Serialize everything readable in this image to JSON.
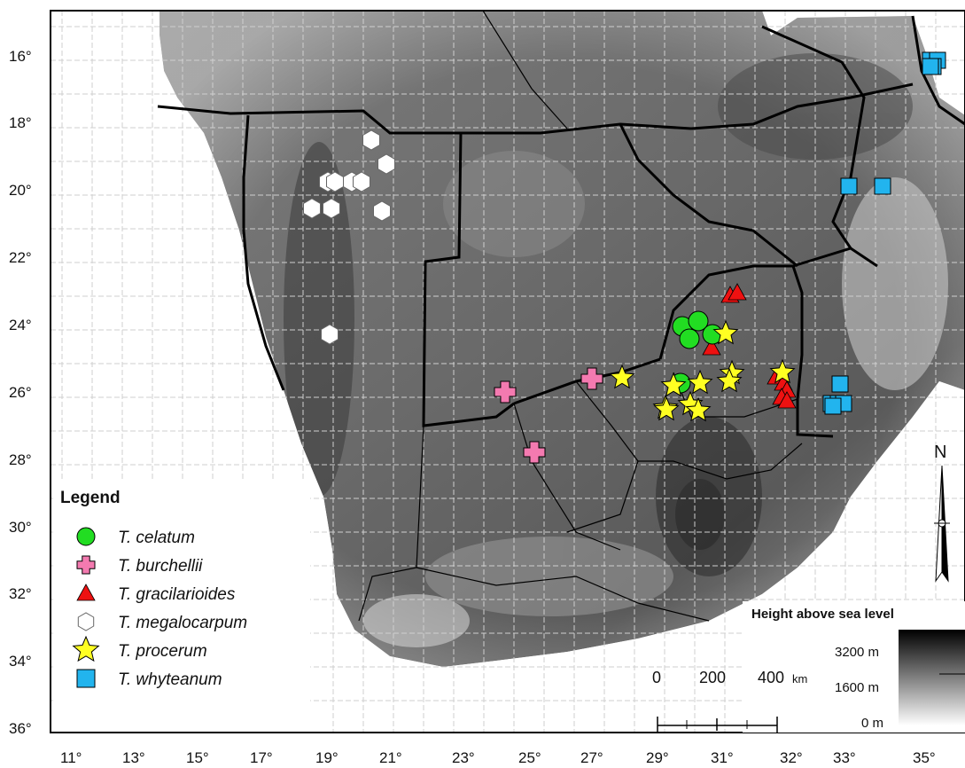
{
  "map": {
    "lat_labels": [
      "16°",
      "18°",
      "20°",
      "22°",
      "24°",
      "26°",
      "28°",
      "30°",
      "32°",
      "34°",
      "36°"
    ],
    "lon_labels": [
      "11°",
      "13°",
      "15°",
      "17°",
      "19°",
      "21°",
      "23°",
      "25°",
      "27°",
      "29°",
      "31°",
      "32°",
      "33°",
      "35°"
    ]
  },
  "legend": {
    "title": "Legend",
    "items": [
      {
        "label": "T. celatum",
        "symbol": "circle",
        "color": "#22dd22"
      },
      {
        "label": "T. burchellii",
        "symbol": "plus",
        "color": "#f47ab0"
      },
      {
        "label": "T. gracilarioides",
        "symbol": "triangle",
        "color": "#ee1111"
      },
      {
        "label": "T. megalocarpum",
        "symbol": "hexagon",
        "color": "#ffffff"
      },
      {
        "label": "T. procerum",
        "symbol": "star",
        "color": "#ffff22"
      },
      {
        "label": "T. whyteanum",
        "symbol": "square",
        "color": "#22b4ee"
      }
    ]
  },
  "elevation": {
    "title": "Height above sea level",
    "labels": [
      "3200 m",
      "1600 m",
      "0 m"
    ]
  },
  "scale_bar": {
    "labels": [
      "0",
      "200",
      "400"
    ],
    "unit": "km"
  },
  "north_arrow": {
    "label": "N"
  },
  "colors": {
    "border": "#000000",
    "grid": "#d8d8d8",
    "sea": "#ffffff"
  }
}
